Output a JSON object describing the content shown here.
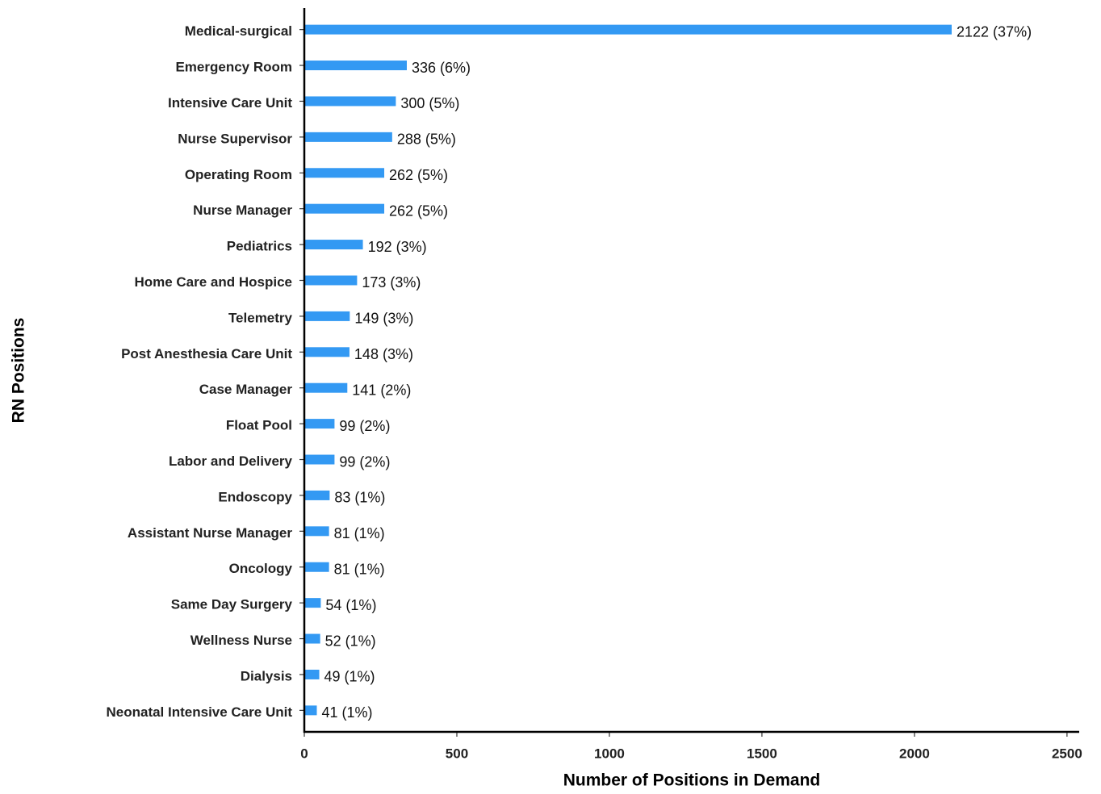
{
  "chart_data": {
    "type": "barh",
    "xlabel": "Number of Positions in Demand",
    "ylabel": "RN Positions",
    "categories": [
      "Medical-surgical",
      "Emergency Room",
      "Intensive Care Unit",
      "Nurse Supervisor",
      "Operating Room",
      "Nurse Manager",
      "Pediatrics",
      "Home Care and Hospice",
      "Telemetry",
      "Post Anesthesia Care Unit",
      "Case Manager",
      "Float Pool",
      "Labor and Delivery",
      "Endoscopy",
      "Assistant Nurse Manager",
      "Oncology",
      "Same Day Surgery",
      "Wellness Nurse",
      "Dialysis",
      "Neonatal Intensive Care Unit"
    ],
    "values": [
      2122,
      336,
      300,
      288,
      262,
      262,
      192,
      173,
      149,
      148,
      141,
      99,
      99,
      83,
      81,
      81,
      54,
      52,
      49,
      41
    ],
    "value_labels": [
      "2122 (37%)",
      "336 (6%)",
      "300 (5%)",
      "288 (5%)",
      "262 (5%)",
      "262 (5%)",
      "192 (3%)",
      "173 (3%)",
      "149 (3%)",
      "148 (3%)",
      "141 (2%)",
      "99 (2%)",
      "99 (2%)",
      "83 (1%)",
      "81 (1%)",
      "81 (1%)",
      "54 (1%)",
      "52 (1%)",
      "49 (1%)",
      "41 (1%)"
    ],
    "color": "#3399f3",
    "xlim": [
      0,
      2540
    ],
    "xticks": [
      0,
      500,
      1000,
      1500,
      2000,
      2500
    ]
  }
}
